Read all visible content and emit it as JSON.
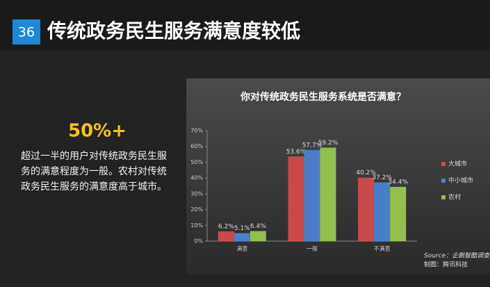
{
  "slide_number": "36",
  "title": "传统政务民生服务满意度较低",
  "highlight": "50%+",
  "description": "超过一半的用户对传统政务民生服务的满意程度为一般。农村对传统政务民生服务的满意度高于城市。",
  "chart_data": {
    "type": "bar",
    "title": "你对传统政务民生服务系统是否满意？",
    "categories": [
      "满意",
      "一般",
      "不满意"
    ],
    "series": [
      {
        "name": "大城市",
        "color": "#c94a4a",
        "values": [
          6.2,
          53.6,
          40.2
        ],
        "value_labels": [
          "6.2%",
          "53.6%",
          "40.2%"
        ]
      },
      {
        "name": "中小城市",
        "color": "#4a7ec9",
        "values": [
          5.1,
          57.7,
          37.2
        ],
        "value_labels": [
          "5.1%",
          "57.7%",
          "37.2%"
        ]
      },
      {
        "name": "农村",
        "color": "#93bf4f",
        "values": [
          6.4,
          59.2,
          34.4
        ],
        "value_labels": [
          "6.4%",
          "59.2%",
          "34.4%"
        ]
      }
    ],
    "ylim": [
      0,
      70
    ],
    "yticks": [
      {
        "value": 0,
        "label": "0%"
      },
      {
        "value": 10,
        "label": "10%"
      },
      {
        "value": 20,
        "label": "20%"
      },
      {
        "value": 30,
        "label": "30%"
      },
      {
        "value": 40,
        "label": "40%"
      },
      {
        "value": 50,
        "label": "50%"
      },
      {
        "value": 60,
        "label": "60%"
      },
      {
        "value": 70,
        "label": "70%"
      }
    ],
    "source": "Source：企鹅智酷调查",
    "credit": "制图：腾讯科技"
  }
}
